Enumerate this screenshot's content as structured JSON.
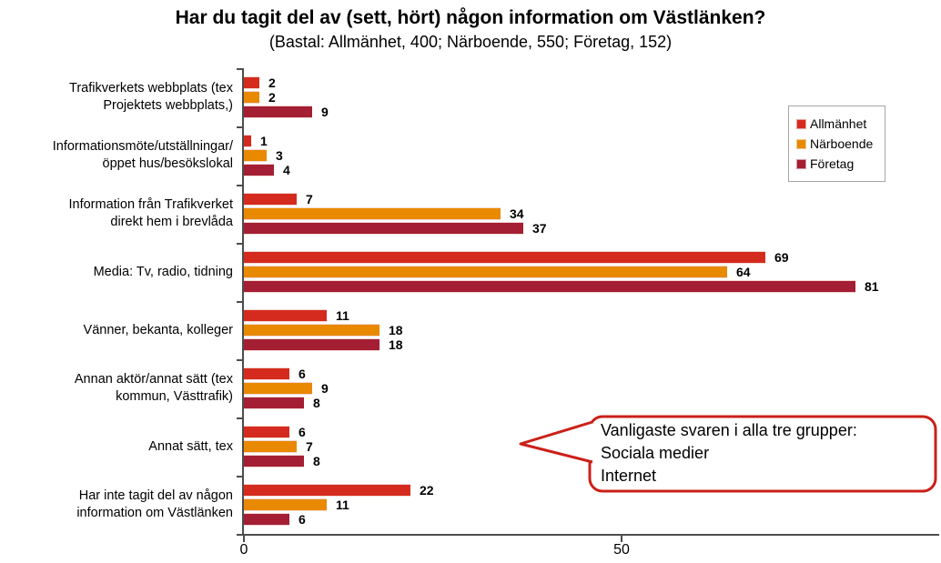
{
  "chart_data": {
    "type": "bar",
    "orientation": "horizontal",
    "title": "Har du tagit del av (sett, hört) någon information om Västlänken?",
    "subtitle": "(Bastal: Allmänhet, 400; Närboende, 550; Företag, 152)",
    "categories": [
      {
        "lines": [
          "Trafikverkets webbplats (tex",
          "Projektets webbplats,)"
        ]
      },
      {
        "lines": [
          "Informationsmöte/utställningar/",
          "öppet hus/besökslokal"
        ]
      },
      {
        "lines": [
          "Information från Trafikverket",
          "direkt hem i brevlåda"
        ]
      },
      {
        "lines": [
          "Media: Tv, radio, tidning"
        ]
      },
      {
        "lines": [
          "Vänner, bekanta, kolleger"
        ]
      },
      {
        "lines": [
          "Annan aktör/annat sätt (tex",
          "kommun, Västtrafik)"
        ]
      },
      {
        "lines": [
          "Annat sätt, tex"
        ]
      },
      {
        "lines": [
          "Har inte tagit del av någon",
          "information om Västlänken"
        ]
      }
    ],
    "series": [
      {
        "name": "Allmänhet",
        "color": "#d52b1e",
        "swatch_border": "#eba49b",
        "values": [
          2,
          1,
          7,
          69,
          11,
          6,
          6,
          22
        ]
      },
      {
        "name": "Närboende",
        "color": "#e88900",
        "swatch_border": "#f2c98d",
        "values": [
          2,
          3,
          34,
          64,
          18,
          9,
          7,
          11
        ]
      },
      {
        "name": "Företag",
        "color": "#a41e34",
        "swatch_border": "#d49aa3",
        "values": [
          9,
          4,
          37,
          81,
          18,
          8,
          8,
          6
        ]
      }
    ],
    "xlim": [
      0,
      92
    ],
    "x_ticks": [
      0,
      50
    ],
    "value_labels": true,
    "grid": false,
    "legend_position": "right-top",
    "axis_color": "#4d4d4d"
  },
  "callout": {
    "lines": [
      "Vanligaste svaren i alla tre grupper:",
      "Sociala medier",
      "Internet"
    ],
    "border_color": "#cb2018",
    "fill": "#ffffff"
  }
}
